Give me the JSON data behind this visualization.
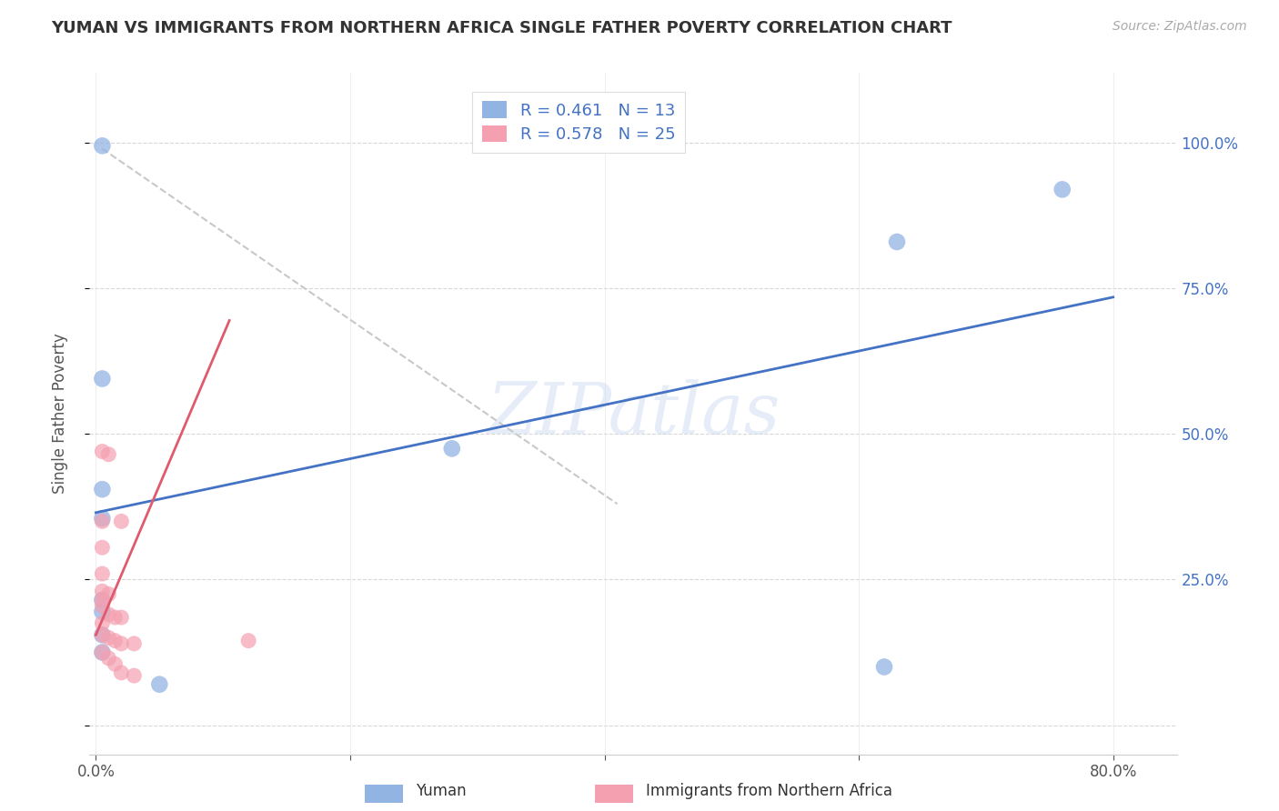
{
  "title": "YUMAN VS IMMIGRANTS FROM NORTHERN AFRICA SINGLE FATHER POVERTY CORRELATION CHART",
  "source": "Source: ZipAtlas.com",
  "xlabel": "",
  "ylabel": "Single Father Poverty",
  "legend_label1": "Yuman",
  "legend_label2": "Immigrants from Northern Africa",
  "R1": 0.461,
  "N1": 13,
  "R2": 0.578,
  "N2": 25,
  "xmin": -0.005,
  "xmax": 0.85,
  "ymin": -0.05,
  "ymax": 1.12,
  "ytick_positions": [
    0.0,
    0.25,
    0.5,
    0.75,
    1.0
  ],
  "ytick_labels": [
    "",
    "25.0%",
    "50.0%",
    "75.0%",
    "100.0%"
  ],
  "color_blue": "#92b4e3",
  "color_pink": "#f4a0b0",
  "line_blue": "#4472c4",
  "line_pink": "#e05a6e",
  "line_gray": "#c8c8c8",
  "watermark": "ZIPatlas",
  "yuman_scatter": [
    [
      0.005,
      0.995
    ],
    [
      0.76,
      0.92
    ],
    [
      0.63,
      0.83
    ],
    [
      0.005,
      0.595
    ],
    [
      0.28,
      0.475
    ],
    [
      0.005,
      0.405
    ],
    [
      0.005,
      0.355
    ],
    [
      0.005,
      0.215
    ],
    [
      0.005,
      0.195
    ],
    [
      0.005,
      0.155
    ],
    [
      0.005,
      0.125
    ],
    [
      0.05,
      0.07
    ],
    [
      0.62,
      0.1
    ]
  ],
  "nafrica_scatter": [
    [
      0.005,
      0.47
    ],
    [
      0.01,
      0.465
    ],
    [
      0.005,
      0.35
    ],
    [
      0.02,
      0.35
    ],
    [
      0.005,
      0.305
    ],
    [
      0.005,
      0.26
    ],
    [
      0.005,
      0.23
    ],
    [
      0.01,
      0.225
    ],
    [
      0.005,
      0.215
    ],
    [
      0.005,
      0.205
    ],
    [
      0.01,
      0.19
    ],
    [
      0.015,
      0.185
    ],
    [
      0.02,
      0.185
    ],
    [
      0.005,
      0.175
    ],
    [
      0.005,
      0.155
    ],
    [
      0.01,
      0.15
    ],
    [
      0.015,
      0.145
    ],
    [
      0.02,
      0.14
    ],
    [
      0.03,
      0.14
    ],
    [
      0.005,
      0.125
    ],
    [
      0.01,
      0.115
    ],
    [
      0.015,
      0.105
    ],
    [
      0.02,
      0.09
    ],
    [
      0.03,
      0.085
    ],
    [
      0.12,
      0.145
    ]
  ],
  "blue_line_x": [
    0.0,
    0.8
  ],
  "blue_line_y": [
    0.365,
    0.735
  ],
  "pink_line_x": [
    0.0,
    0.105
  ],
  "pink_line_y": [
    0.155,
    0.695
  ],
  "gray_line_x": [
    0.005,
    0.41
  ],
  "gray_line_y": [
    0.99,
    0.38
  ]
}
